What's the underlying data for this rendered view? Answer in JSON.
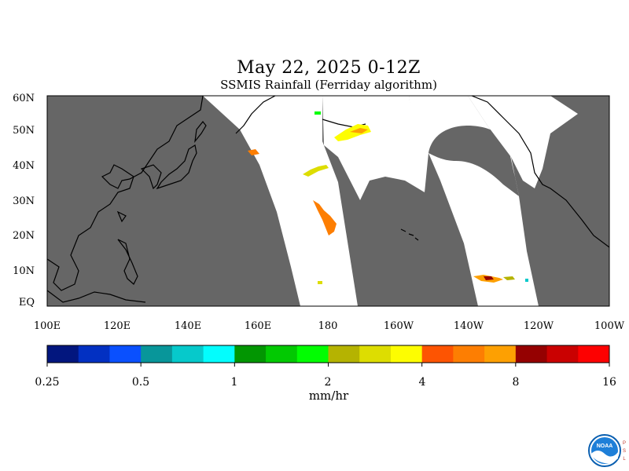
{
  "title": "May 22, 2025 0-12Z",
  "subtitle": "SSMIS Rainfall (Ferriday algorithm)",
  "lat_labels": [
    "60N",
    "50N",
    "40N",
    "30N",
    "20N",
    "10N",
    "EQ"
  ],
  "lon_labels": [
    "100E",
    "120E",
    "140E",
    "160E",
    "180",
    "160W",
    "140W",
    "120W",
    "100W"
  ],
  "colorbar": {
    "colors": [
      "#02167e",
      "#0230c2",
      "#0a50fe",
      "#08969a",
      "#06c9cb",
      "#03fdfd",
      "#029602",
      "#02c902",
      "#02fd02",
      "#b5b301",
      "#dddd01",
      "#fdfd01",
      "#fd5402",
      "#fd7e02",
      "#fda002",
      "#950101",
      "#ca0101",
      "#fd0101"
    ],
    "tick_labels": [
      "0.25",
      "0.5",
      "1",
      "2",
      "4",
      "8",
      "16"
    ],
    "units": "mm/hr"
  },
  "logo": {
    "text": "NOAA",
    "side_text": "PSL"
  },
  "colors": {
    "no_data": "#666666",
    "land_outline": "#000000",
    "ocean_covered": "#ffffff"
  }
}
